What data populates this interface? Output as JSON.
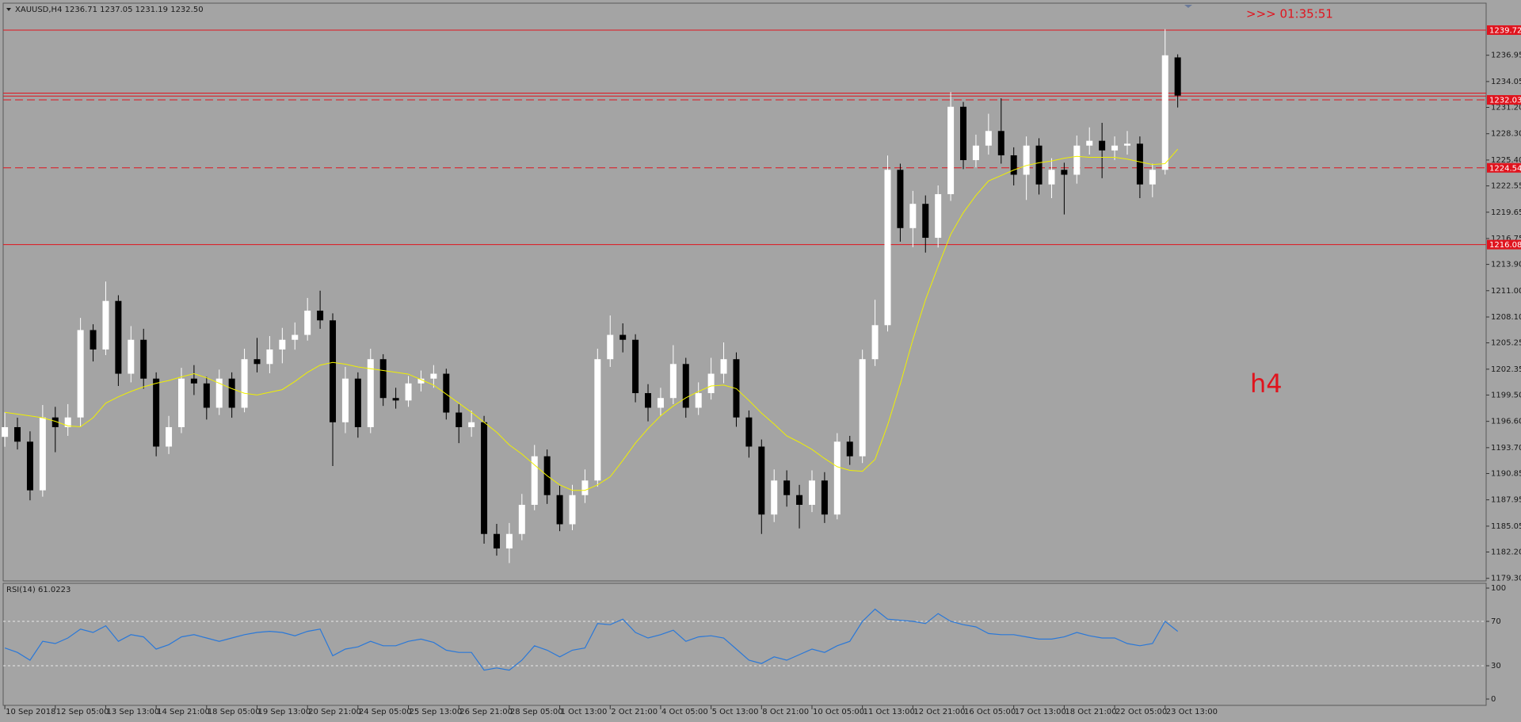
{
  "header": {
    "symbol_info": "XAUUSD,H4  1236.71 1237.05 1231.19 1232.50",
    "countdown": ">>> 01:35:51",
    "timeframe_note": "h4"
  },
  "chart_data": [
    {
      "type": "candlestick",
      "categories": [
        "10 Sep 2018",
        null,
        null,
        null,
        "12 Sep 05:00",
        null,
        null,
        null,
        "13 Sep 13:00",
        null,
        null,
        null,
        "14 Sep 21:00",
        null,
        null,
        null,
        "18 Sep 05:00",
        null,
        null,
        null,
        "19 Sep 13:00",
        null,
        null,
        null,
        "20 Sep 21:00",
        null,
        null,
        null,
        "24 Sep 05:00",
        null,
        null,
        null,
        "25 Sep 13:00",
        null,
        null,
        null,
        "26 Sep 21:00",
        null,
        null,
        null,
        "28 Sep 05:00",
        null,
        null,
        null,
        "1 Oct 13:00",
        null,
        null,
        null,
        "2 Oct 21:00",
        null,
        null,
        null,
        "4 Oct 05:00",
        null,
        null,
        null,
        "5 Oct 13:00",
        null,
        null,
        null,
        "8 Oct 21:00",
        null,
        null,
        null,
        "10 Oct 05:00",
        null,
        null,
        null,
        "11 Oct 13:00",
        null,
        null,
        null,
        "12 Oct 21:00",
        null,
        null,
        null,
        "16 Oct 05:00",
        null,
        null,
        null,
        "17 Oct 13:00",
        null,
        null,
        null,
        "18 Oct 21:00",
        null,
        null,
        null,
        "22 Oct 05:00",
        null,
        null,
        null,
        "23 Oct 13:00",
        null
      ],
      "open": [
        1194.89,
        1195.96,
        1194.36,
        1189.0,
        1197.03,
        1195.96,
        1197.03,
        1206.66,
        1204.52,
        1209.87,
        1201.85,
        1205.59,
        1201.31,
        1193.82,
        1195.96,
        1201.31,
        1200.78,
        1198.1,
        1201.31,
        1198.1,
        1203.45,
        1202.92,
        1204.52,
        1205.59,
        1206.13,
        1208.8,
        1207.73,
        1196.5,
        1201.31,
        1195.96,
        1203.45,
        1199.17,
        1198.9,
        1200.78,
        1201.31,
        1201.85,
        1197.57,
        1195.96,
        1196.5,
        1184.19,
        1182.59,
        1184.19,
        1187.4,
        1192.75,
        1188.47,
        1185.26,
        1188.47,
        1190.08,
        1203.45,
        1206.13,
        1205.59,
        1199.71,
        1198.1,
        1199.17,
        1202.92,
        1198.1,
        1199.71,
        1201.85,
        1203.45,
        1197.03,
        1193.82,
        1186.33,
        1190.08,
        1188.47,
        1187.4,
        1190.08,
        1186.33,
        1194.36,
        1192.75,
        1203.45,
        1207.2,
        1224.32,
        1217.9,
        1220.57,
        1216.83,
        1221.64,
        1231.27,
        1225.39,
        1226.99,
        1228.6,
        1225.92,
        1223.78,
        1226.99,
        1222.71,
        1224.32,
        1223.78,
        1226.99,
        1227.52,
        1226.46,
        1226.99,
        1227.2,
        1222.71,
        1224.32,
        1236.71
      ],
      "high": [
        1197.6,
        1197.0,
        1195.5,
        1198.4,
        1198.2,
        1198.5,
        1208.0,
        1207.3,
        1212.01,
        1210.5,
        1207.1,
        1206.8,
        1202.0,
        1197.2,
        1202.5,
        1202.8,
        1201.5,
        1202.3,
        1202.0,
        1204.6,
        1205.8,
        1206.0,
        1206.9,
        1207.5,
        1210.2,
        1211.0,
        1208.5,
        1202.6,
        1202.0,
        1204.6,
        1204.0,
        1200.3,
        1201.6,
        1202.2,
        1202.8,
        1202.4,
        1198.5,
        1197.8,
        1197.2,
        1185.3,
        1185.4,
        1188.6,
        1194.0,
        1193.5,
        1189.5,
        1189.6,
        1191.3,
        1204.6,
        1208.27,
        1207.4,
        1206.2,
        1200.7,
        1200.3,
        1205.0,
        1203.6,
        1200.9,
        1203.6,
        1205.3,
        1204.2,
        1197.8,
        1194.6,
        1191.3,
        1191.2,
        1189.6,
        1191.2,
        1191.0,
        1195.3,
        1195.0,
        1204.5,
        1210.0,
        1225.9,
        1225.0,
        1222.0,
        1221.5,
        1222.6,
        1232.88,
        1231.8,
        1228.2,
        1230.5,
        1232.2,
        1226.8,
        1228.0,
        1227.8,
        1225.6,
        1225.1,
        1228.1,
        1229.0,
        1229.5,
        1228.0,
        1228.6,
        1228.0,
        1225.0,
        1239.83,
        1237.05
      ],
      "low": [
        1193.8,
        1193.5,
        1187.9,
        1188.3,
        1193.2,
        1195.0,
        1196.0,
        1203.2,
        1203.9,
        1200.5,
        1200.9,
        1200.2,
        1192.75,
        1193.0,
        1195.3,
        1199.5,
        1196.8,
        1197.3,
        1197.0,
        1197.6,
        1202.0,
        1201.9,
        1203.0,
        1204.5,
        1205.5,
        1206.8,
        1191.68,
        1195.3,
        1194.8,
        1195.3,
        1198.3,
        1198.0,
        1198.2,
        1199.9,
        1200.3,
        1196.8,
        1194.2,
        1194.9,
        1183.12,
        1181.8,
        1180.98,
        1183.5,
        1186.8,
        1187.5,
        1184.5,
        1184.6,
        1187.6,
        1189.4,
        1202.6,
        1204.2,
        1198.7,
        1196.6,
        1197.2,
        1198.5,
        1197.0,
        1197.3,
        1199.0,
        1200.8,
        1196.0,
        1192.6,
        1184.19,
        1185.5,
        1187.2,
        1184.8,
        1186.6,
        1185.4,
        1185.8,
        1191.8,
        1192.0,
        1202.7,
        1206.5,
        1216.4,
        1215.8,
        1215.2,
        1215.76,
        1220.9,
        1224.4,
        1224.6,
        1226.0,
        1225.0,
        1222.6,
        1221.0,
        1221.6,
        1221.2,
        1219.4,
        1222.8,
        1226.0,
        1223.4,
        1225.4,
        1226.0,
        1221.2,
        1221.3,
        1223.8,
        1231.19
      ],
      "close": [
        1195.96,
        1194.36,
        1189.0,
        1197.03,
        1195.96,
        1197.03,
        1206.66,
        1204.52,
        1209.87,
        1201.85,
        1205.59,
        1201.31,
        1193.82,
        1195.96,
        1201.31,
        1200.78,
        1198.1,
        1201.31,
        1198.1,
        1203.45,
        1202.92,
        1204.52,
        1205.59,
        1206.13,
        1208.8,
        1207.73,
        1196.5,
        1201.31,
        1195.96,
        1203.45,
        1199.17,
        1198.9,
        1200.78,
        1201.31,
        1201.85,
        1197.57,
        1195.96,
        1196.5,
        1184.19,
        1182.59,
        1184.19,
        1187.4,
        1192.75,
        1188.47,
        1185.26,
        1188.47,
        1190.08,
        1203.45,
        1206.13,
        1205.59,
        1199.71,
        1198.1,
        1199.17,
        1202.92,
        1198.1,
        1199.71,
        1201.85,
        1203.45,
        1197.03,
        1193.82,
        1186.33,
        1190.08,
        1188.47,
        1187.4,
        1190.08,
        1186.33,
        1194.36,
        1192.75,
        1203.45,
        1207.2,
        1224.32,
        1217.9,
        1220.57,
        1216.83,
        1221.64,
        1231.27,
        1225.39,
        1226.99,
        1228.6,
        1225.92,
        1223.78,
        1226.99,
        1222.71,
        1224.32,
        1223.78,
        1226.99,
        1227.52,
        1226.46,
        1226.99,
        1227.2,
        1222.71,
        1224.32,
        1236.94,
        1232.5
      ],
      "up_color": "#ffffff",
      "down_color": "#000000",
      "overlay_color": "#f0f000",
      "overlay_values": [
        1197.6,
        1197.4,
        1197.2,
        1197.0,
        1196.6,
        1196.1,
        1196.0,
        1197.0,
        1198.6,
        1199.3,
        1199.9,
        1200.4,
        1200.8,
        1201.1,
        1201.5,
        1201.85,
        1201.4,
        1200.8,
        1200.2,
        1199.7,
        1199.5,
        1199.8,
        1200.1,
        1201.0,
        1202.0,
        1202.8,
        1203.1,
        1202.9,
        1202.6,
        1202.4,
        1202.2,
        1202.0,
        1201.8,
        1201.2,
        1200.6,
        1199.6,
        1198.6,
        1197.6,
        1196.5,
        1195.4,
        1194.0,
        1193.0,
        1191.8,
        1190.6,
        1189.6,
        1189.0,
        1189.0,
        1189.6,
        1190.5,
        1192.3,
        1194.2,
        1195.8,
        1197.2,
        1198.3,
        1199.2,
        1199.9,
        1200.5,
        1200.6,
        1200.2,
        1198.9,
        1197.5,
        1196.3,
        1195.0,
        1194.3,
        1193.5,
        1192.5,
        1191.6,
        1191.2,
        1191.1,
        1192.4,
        1196.2,
        1200.7,
        1205.6,
        1210.0,
        1213.7,
        1217.2,
        1219.6,
        1221.5,
        1223.1,
        1223.7,
        1224.3,
        1224.8,
        1225.1,
        1225.3,
        1225.6,
        1225.8,
        1225.7,
        1225.7,
        1225.7,
        1225.5,
        1225.2,
        1224.9,
        1225.0,
        1226.6
      ],
      "ylim": [
        1179.1,
        1242.6
      ],
      "yticks": [
        {
          "value": 1179.3,
          "label": "1179.30"
        },
        {
          "value": 1182.2,
          "label": "1182.20"
        },
        1185.05,
        1187.95,
        1190.85,
        {
          "value": 1193.7,
          "label": "1193.70"
        },
        {
          "value": 1196.6,
          "label": "1196.60"
        },
        {
          "value": 1199.5,
          "label": "1199.50"
        },
        1202.35,
        1205.25,
        {
          "value": 1208.1,
          "label": "1208.10"
        },
        {
          "value": 1211.0,
          "label": "1211.00"
        },
        {
          "value": 1213.9,
          "label": "1213.90"
        },
        1216.75,
        1219.65,
        1222.55,
        {
          "value": 1225.4,
          "label": "1225.40"
        },
        {
          "value": 1228.3,
          "label": "1228.30"
        },
        {
          "value": 1231.2,
          "label": "1231.20"
        },
        1234.05,
        1236.95
      ],
      "level_color": "#e0141e",
      "levels": [
        {
          "value": 1239.72,
          "style": "solid",
          "labeled": true
        },
        {
          "value": 1232.77,
          "style": "solid",
          "labeled": false
        },
        {
          "value": 1232.45,
          "style": "solid",
          "labeled": false
        },
        {
          "value": 1232.03,
          "style": "dashed",
          "labeled": true
        },
        {
          "value": 1224.54,
          "style": "dashed",
          "labeled": true
        },
        {
          "value": 1216.08,
          "style": "solid",
          "labeled": true
        }
      ]
    },
    {
      "type": "line",
      "label": "RSI(14) 61.0223",
      "color": "#2a78d8",
      "values": [
        46,
        42,
        35,
        52,
        50,
        55,
        63,
        60,
        66,
        52,
        58,
        56,
        45,
        49,
        56,
        58,
        55,
        52,
        55,
        58,
        60,
        61,
        60,
        57,
        61,
        63,
        39,
        45,
        47,
        52,
        48,
        48,
        52,
        54,
        51,
        44,
        42,
        42,
        26,
        28,
        26,
        35,
        48,
        44,
        38,
        44,
        46,
        68,
        67,
        72,
        60,
        55,
        58,
        62,
        52,
        56,
        57,
        55,
        45,
        35,
        32,
        38,
        35,
        40,
        45,
        42,
        48,
        52,
        70,
        81,
        72,
        71,
        70,
        68,
        77,
        70,
        67,
        65,
        59,
        58,
        58,
        56,
        54,
        54,
        56,
        60,
        57,
        55,
        55,
        50,
        48,
        50,
        70,
        61.0223
      ],
      "ylim": [
        -5.7,
        104.3
      ],
      "yticks": [
        100,
        70,
        30,
        0
      ],
      "levels": [
        70,
        30
      ]
    }
  ]
}
